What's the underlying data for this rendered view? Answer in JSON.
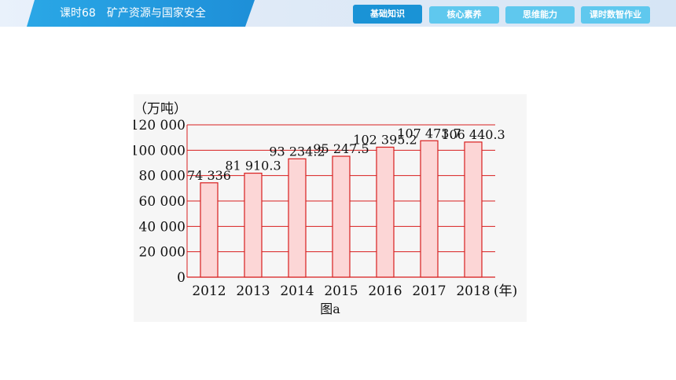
{
  "header": {
    "title": "课时68　矿产资源与国家安全",
    "nav": [
      {
        "label": "基础知识",
        "active": true
      },
      {
        "label": "核心素养",
        "active": false
      },
      {
        "label": "思维能力",
        "active": false
      },
      {
        "label": "课时数智作业",
        "active": false
      }
    ]
  },
  "colors": {
    "accent": "#1a93d6",
    "nav_inactive": "#5fc8ee",
    "bar_fill": "#fcd6d6",
    "bar_stroke": "#d81e1e",
    "grid": "#d81e1e"
  },
  "chart_data": {
    "type": "bar",
    "unit_label": "（万吨）",
    "x_unit_label": "(年)",
    "caption": "图a",
    "categories": [
      "2012",
      "2013",
      "2014",
      "2015",
      "2016",
      "2017",
      "2018"
    ],
    "values": [
      74336,
      81910.3,
      93234.2,
      95247.5,
      102395.2,
      107473.7,
      106440.3
    ],
    "value_labels": [
      "74 336",
      "81 910.3",
      "93 234.2",
      "95 247.5",
      "102 395.2",
      "107 473.7",
      "106 440.3"
    ],
    "yticks": [
      0,
      20000,
      40000,
      60000,
      80000,
      100000,
      120000
    ],
    "ytick_labels": [
      "0",
      "20 000",
      "40 000",
      "60 000",
      "80 000",
      "100 000",
      "120 000"
    ],
    "ylim": [
      0,
      120000
    ],
    "grid": true
  }
}
